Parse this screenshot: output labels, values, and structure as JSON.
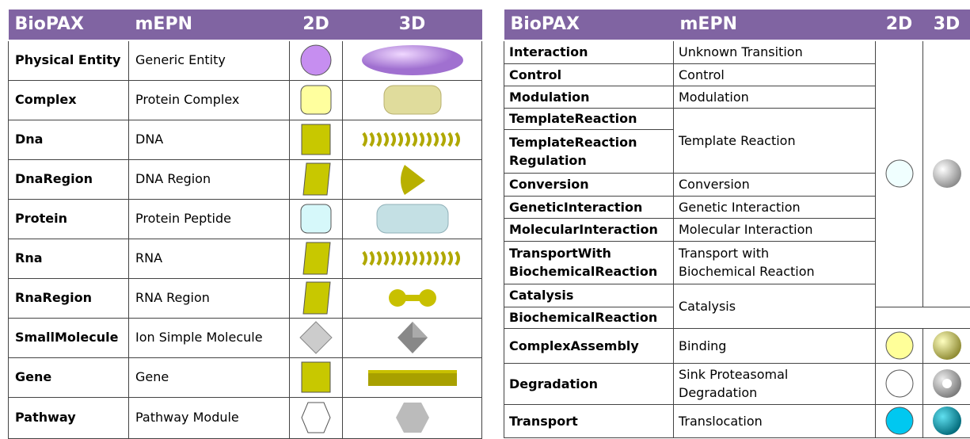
{
  "left": {
    "header": [
      "BioPAX",
      "mEPN",
      "2D",
      "3D"
    ],
    "rows": [
      [
        "Physical Entity",
        "Generic Entity"
      ],
      [
        "Complex",
        "Protein Complex"
      ],
      [
        "Dna",
        "DNA"
      ],
      [
        "DnaRegion",
        "DNA Region"
      ],
      [
        "Protein",
        "Protein Peptide"
      ],
      [
        "Rna",
        "RNA"
      ],
      [
        "RnaRegion",
        "RNA Region"
      ],
      [
        "SmallMolecule",
        "Ion Simple Molecule"
      ],
      [
        "Gene",
        "Gene"
      ],
      [
        "Pathway",
        "Pathway Module"
      ]
    ]
  },
  "right": {
    "header": [
      "BioPAX",
      "mEPN",
      "2D",
      "3D"
    ],
    "rows": [
      [
        "Interaction",
        "Unknown Transition"
      ],
      [
        "Control",
        "Control"
      ],
      [
        "Modulation",
        "Modulation"
      ],
      [
        "TemplateReaction",
        "Template Reaction"
      ],
      [
        "TemplateReaction\nRegulation"
      ],
      [
        "Conversion",
        "Conversion"
      ],
      [
        "GeneticInteraction",
        "Genetic Interaction"
      ],
      [
        "MolecularInteraction",
        "Molecular Interaction"
      ],
      [
        "TransportWith\nBiochemicalReaction",
        "Transport with\nBiochemical Reaction"
      ],
      [
        "Catalysis",
        "Catalysis"
      ],
      [
        "BiochemicalReaction"
      ],
      [
        "ComplexAssembly",
        "Binding"
      ],
      [
        "Degradation",
        "Sink Proteasomal\nDegradation"
      ],
      [
        "Transport",
        "Translocation"
      ]
    ]
  }
}
